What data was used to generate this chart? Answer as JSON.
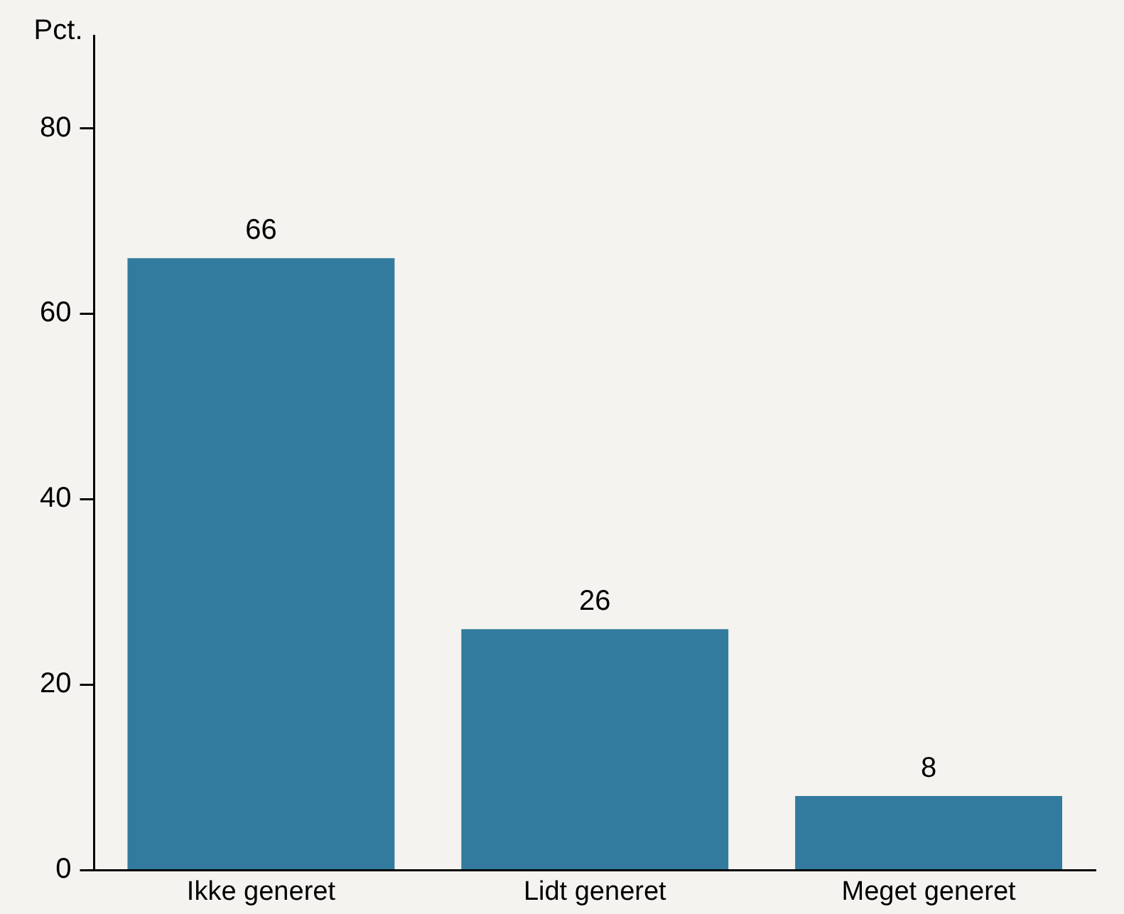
{
  "chart_data": {
    "type": "bar",
    "ylabel": "Pct.",
    "categories": [
      "Ikke generet",
      "Lidt generet",
      "Meget generet"
    ],
    "values": [
      66,
      26,
      8
    ],
    "color": "#337b9e",
    "ylim": [
      0,
      90
    ],
    "yticks": [
      0,
      20,
      40,
      60,
      80
    ],
    "data_labels": true,
    "legend": false,
    "grid": false
  }
}
